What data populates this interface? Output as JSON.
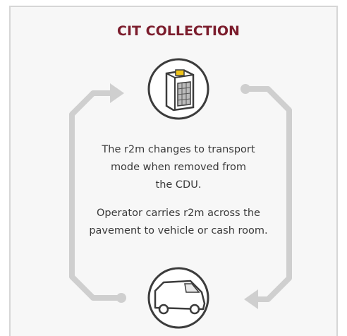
{
  "header": {
    "title": "CIT COLLECTION"
  },
  "paragraphs": [
    {
      "lines": [
        "The r2m changes to transport",
        "mode when removed from",
        "the CDU."
      ]
    },
    {
      "lines": [
        "Operator carries r2m across the",
        "pavement to vehicle or cash room."
      ]
    }
  ]
}
